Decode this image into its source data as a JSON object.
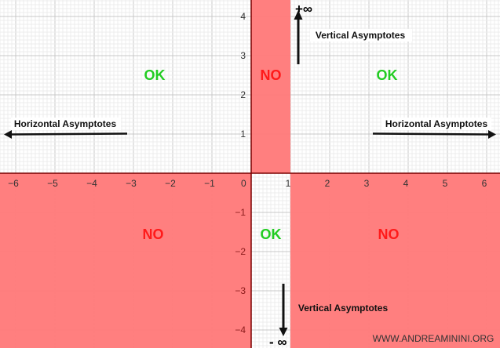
{
  "x_ticks": [
    "−6",
    "−5",
    "−4",
    "−3",
    "−2",
    "−1",
    "1",
    "2",
    "3",
    "4",
    "5",
    "6"
  ],
  "x_tick_values": [
    -6,
    -5,
    -4,
    -3,
    -2,
    -1,
    1,
    2,
    3,
    4,
    5,
    6
  ],
  "y_ticks": [
    "4",
    "3",
    "2",
    "1",
    "−1",
    "−2",
    "−3",
    "−4"
  ],
  "y_tick_values": [
    4,
    3,
    2,
    1,
    -1,
    -2,
    -3,
    -4
  ],
  "origin_label": "0",
  "regions": {
    "top_left": "OK",
    "top_middle": "NO",
    "top_right": "OK",
    "bottom_left": "NO",
    "bottom_middle": "OK",
    "bottom_right": "NO"
  },
  "annotations": {
    "horizontal_left": "Horizontal Asymptotes",
    "horizontal_right": "Horizontal Asymptotes",
    "vertical_top": "Vertical Asymptotes",
    "vertical_bottom": "Vertical Asymptotes",
    "plus_infinity": "+∞",
    "minus_infinity": "- ∞"
  },
  "watermark": "WWW.ANDREAMININI.ORG",
  "colors": {
    "no_region": "#ff7b7b",
    "ok_text": "#22cc22",
    "no_text": "#ff1a1a",
    "axis": "#7a0000"
  }
}
